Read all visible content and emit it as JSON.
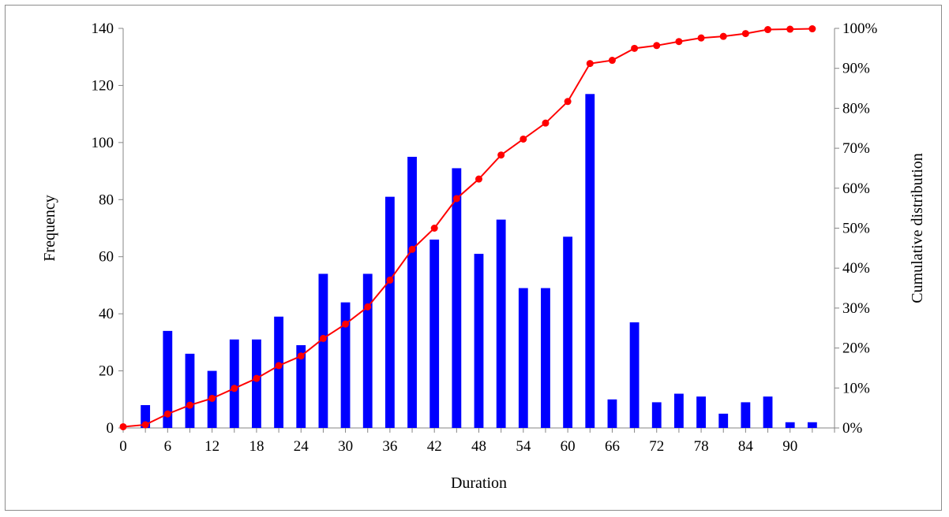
{
  "chart_data": {
    "type": "bar",
    "xlabel": "Duration",
    "ylabel": "Frequency",
    "y2label": "Cumulative distribution",
    "ylim": [
      0,
      140
    ],
    "y2lim": [
      0,
      1
    ],
    "y_ticks": [
      "0",
      "20",
      "40",
      "60",
      "80",
      "100",
      "120",
      "140"
    ],
    "y2_ticks": [
      "0%",
      "10%",
      "20%",
      "30%",
      "40%",
      "50%",
      "60%",
      "70%",
      "80%",
      "90%",
      "100%"
    ],
    "x_tick_labels": [
      "0",
      "6",
      "12",
      "18",
      "24",
      "30",
      "36",
      "42",
      "48",
      "54",
      "60",
      "66",
      "72",
      "78",
      "84",
      "90"
    ],
    "grid": false,
    "x": [
      0,
      3,
      6,
      9,
      12,
      15,
      18,
      21,
      24,
      27,
      30,
      33,
      36,
      39,
      42,
      45,
      48,
      51,
      54,
      57,
      60,
      63,
      66,
      69,
      72,
      75,
      78,
      81,
      84,
      87,
      90,
      93
    ],
    "series": [
      {
        "type": "bar",
        "color": "#0000FF",
        "axis": "left",
        "values": [
          0,
          8,
          34,
          26,
          20,
          31,
          31,
          39,
          29,
          54,
          44,
          54,
          81,
          95,
          66,
          91,
          61,
          73,
          49,
          49,
          67,
          117,
          10,
          37,
          9,
          12,
          11,
          5,
          9,
          11,
          2,
          2
        ]
      },
      {
        "type": "line",
        "color": "#FF0000",
        "axis": "right",
        "marker": "circle",
        "values": [
          0.003,
          0.008,
          0.035,
          0.057,
          0.074,
          0.099,
          0.124,
          0.156,
          0.18,
          0.224,
          0.26,
          0.303,
          0.37,
          0.447,
          0.5,
          0.574,
          0.623,
          0.683,
          0.723,
          0.763,
          0.817,
          0.912,
          0.92,
          0.95,
          0.957,
          0.967,
          0.976,
          0.98,
          0.987,
          0.997,
          0.998,
          0.999
        ]
      }
    ]
  }
}
